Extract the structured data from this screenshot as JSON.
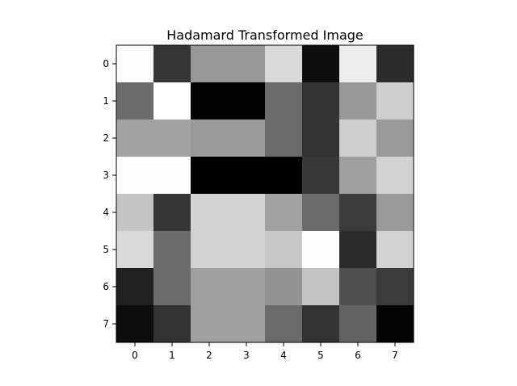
{
  "chart_data": {
    "type": "heatmap",
    "title": "Hadamard Transformed Image",
    "colormap": "grayscale (0 = black, 255 = white)",
    "x_ticks": [
      "0",
      "1",
      "2",
      "3",
      "4",
      "5",
      "6",
      "7"
    ],
    "y_ticks": [
      "0",
      "1",
      "2",
      "3",
      "4",
      "5",
      "6",
      "7"
    ],
    "grid": false,
    "legend": "none",
    "values": [
      [
        253,
        53,
        152,
        152,
        217,
        14,
        237,
        43
      ],
      [
        107,
        255,
        2,
        2,
        107,
        51,
        152,
        206
      ],
      [
        162,
        162,
        154,
        154,
        107,
        51,
        206,
        154
      ],
      [
        253,
        253,
        0,
        0,
        0,
        56,
        160,
        210
      ],
      [
        196,
        53,
        210,
        210,
        162,
        107,
        59,
        154
      ],
      [
        217,
        107,
        210,
        210,
        200,
        253,
        43,
        210
      ],
      [
        33,
        107,
        160,
        160,
        148,
        196,
        79,
        59
      ],
      [
        12,
        51,
        160,
        160,
        107,
        51,
        99,
        4
      ]
    ]
  }
}
